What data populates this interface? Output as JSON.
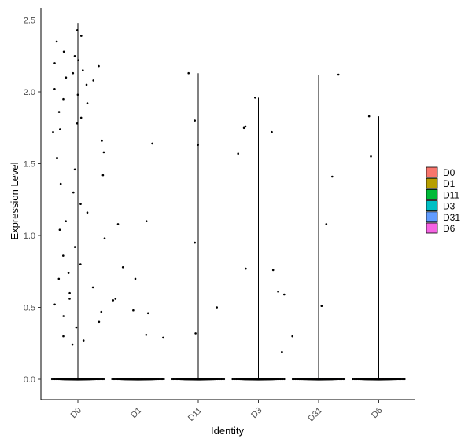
{
  "chart_data": {
    "type": "violin",
    "xlabel": "Identity",
    "ylabel": "Expression Level",
    "categories": [
      "D0",
      "D1",
      "D11",
      "D3",
      "D31",
      "D6"
    ],
    "ylim": [
      -0.05,
      2.58
    ],
    "yticks": [
      0.0,
      0.5,
      1.0,
      1.5,
      2.0,
      2.5
    ],
    "ytick_labels": [
      "0.0",
      "0.5",
      "1.0",
      "1.5",
      "2.0",
      "2.5"
    ],
    "grid": false,
    "legend_position": "right",
    "series": [
      {
        "name": "D0",
        "color": "#F8766D",
        "max": 2.48,
        "points": [
          2.43,
          2.39,
          2.35,
          2.28,
          2.25,
          2.22,
          2.2,
          2.18,
          2.15,
          2.13,
          2.1,
          2.08,
          2.05,
          2.02,
          1.98,
          1.95,
          1.92,
          1.86,
          1.82,
          1.78,
          1.74,
          1.72,
          1.66,
          1.58,
          1.54,
          1.46,
          1.42,
          1.36,
          1.3,
          1.22,
          1.16,
          1.1,
          1.04,
          0.98,
          0.92,
          0.86,
          0.8,
          0.74,
          0.7,
          0.64,
          0.6,
          0.56,
          0.52,
          0.47,
          0.44,
          0.4,
          0.36,
          0.3,
          0.27,
          0.24
        ]
      },
      {
        "name": "D1",
        "color": "#B79F00",
        "max": 1.64,
        "points": [
          1.64,
          1.1,
          1.08,
          0.78,
          0.7,
          0.56,
          0.55,
          0.48,
          0.46,
          0.31,
          0.29
        ]
      },
      {
        "name": "D11",
        "color": "#00BA38",
        "max": 2.13,
        "points": [
          2.13,
          1.8,
          1.63,
          0.95,
          0.5,
          0.32
        ]
      },
      {
        "name": "D3",
        "color": "#00BFC4",
        "max": 1.96,
        "points": [
          1.96,
          1.76,
          1.75,
          1.72,
          1.57,
          0.77,
          0.76,
          0.61,
          0.59,
          0.19
        ]
      },
      {
        "name": "D31",
        "color": "#619CFF",
        "max": 2.12,
        "points": [
          2.12,
          1.41,
          1.08,
          0.51,
          0.3
        ]
      },
      {
        "name": "D6",
        "color": "#F564E3",
        "max": 1.83,
        "points": [
          1.83,
          1.55
        ]
      }
    ]
  }
}
